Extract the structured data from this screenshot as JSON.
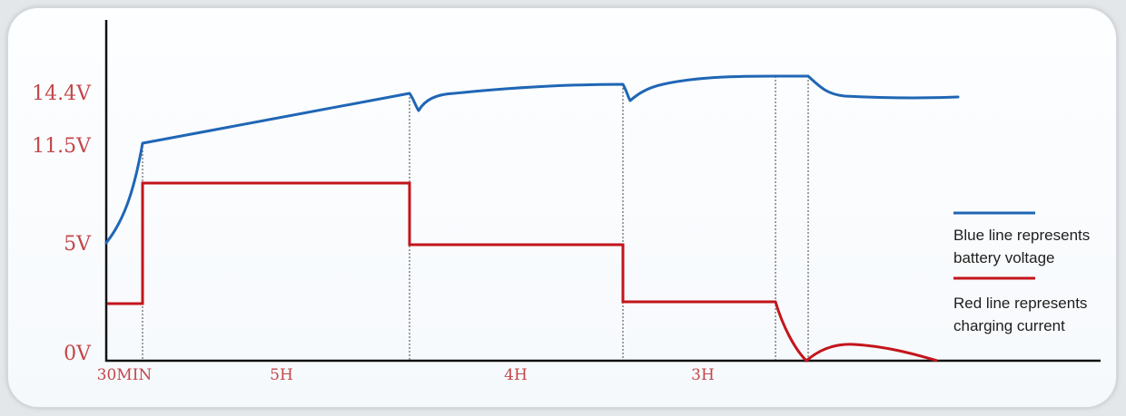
{
  "chart_data": {
    "type": "line",
    "title": "",
    "xlabel": "",
    "ylabel": "",
    "y_ticks": [
      "14.4V",
      "11.5V",
      "5V",
      "0V"
    ],
    "x_labels": [
      "30MIN",
      "5H",
      "4H",
      "3H"
    ],
    "series": [
      {
        "name": "Blue line represents battery voltage",
        "color": "#1f66b5",
        "points": [
          [
            0,
            4.7
          ],
          [
            0.5,
            11.5
          ],
          [
            5.5,
            14.6
          ],
          [
            5.65,
            12.7
          ],
          [
            9.0,
            14.6
          ],
          [
            9.15,
            13.4
          ],
          [
            12.0,
            15.2
          ],
          [
            12.5,
            15.2
          ],
          [
            14.0,
            14.2
          ]
        ]
      },
      {
        "name": "Red line represents charging current",
        "color": "#c3151c",
        "points": [
          [
            0,
            2.9
          ],
          [
            0.5,
            2.9
          ],
          [
            0.5,
            9.3
          ],
          [
            5.5,
            9.3
          ],
          [
            5.5,
            5.9
          ],
          [
            9.0,
            5.9
          ],
          [
            9.0,
            3.0
          ],
          [
            12.0,
            3.0
          ],
          [
            12.5,
            0
          ],
          [
            13.5,
            0.8
          ],
          [
            14.0,
            0
          ]
        ]
      }
    ],
    "legend": {
      "placement": "right",
      "voltage_label_line1": "Blue line represents",
      "voltage_label_line2": "battery voltage",
      "current_label_line1": "Red line represents",
      "current_label_line2": "charging current"
    },
    "grid": false
  }
}
